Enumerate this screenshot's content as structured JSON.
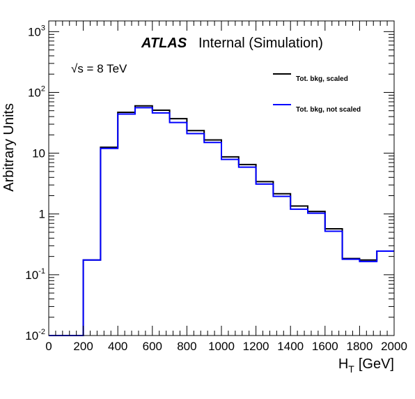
{
  "chart_data": {
    "type": "step-histogram",
    "title": "",
    "atlas_label": "ATLAS",
    "atlas_status": "Internal (Simulation)",
    "energy_label": "√s = 8 TeV",
    "xlabel": "H",
    "xlabel_sub": "T",
    "xlabel_unit": "[GeV]",
    "ylabel": "Arbitrary Units",
    "xlim": [
      0,
      2000
    ],
    "ylim": [
      0.01,
      1500
    ],
    "yscale": "log",
    "x_ticks": [
      "0",
      "200",
      "400",
      "600",
      "800",
      "1000",
      "1200",
      "1400",
      "1600",
      "1800",
      "2000"
    ],
    "y_ticks": [
      {
        "value": 0.01,
        "base": "10",
        "exp": "-2"
      },
      {
        "value": 0.1,
        "base": "10",
        "exp": "-1"
      },
      {
        "value": 1,
        "base": "1",
        "exp": ""
      },
      {
        "value": 10,
        "base": "10",
        "exp": ""
      },
      {
        "value": 100,
        "base": "10",
        "exp": "2"
      },
      {
        "value": 1000,
        "base": "10",
        "exp": "3"
      }
    ],
    "bin_edges": [
      0,
      100,
      200,
      300,
      400,
      500,
      600,
      700,
      800,
      900,
      1000,
      1100,
      1200,
      1300,
      1400,
      1500,
      1600,
      1700,
      1800,
      1900,
      2000
    ],
    "legend_position": "top-right",
    "series": [
      {
        "name": "Tot. bkg, scaled",
        "color": "#000000",
        "values": [
          0.01,
          0.01,
          0.175,
          12.5,
          47,
          60,
          51,
          37,
          23.5,
          16.5,
          8.7,
          6.5,
          3.4,
          2.15,
          1.35,
          1.1,
          0.57,
          0.185,
          0.175,
          0.245
        ]
      },
      {
        "name": "Tot. bkg, not scaled",
        "color": "#0000ff",
        "values": [
          0.01,
          0.01,
          0.175,
          12.0,
          44,
          56,
          46,
          32,
          21,
          15,
          7.9,
          5.9,
          3.1,
          1.95,
          1.2,
          1.03,
          0.52,
          0.18,
          0.165,
          0.245
        ]
      }
    ]
  }
}
